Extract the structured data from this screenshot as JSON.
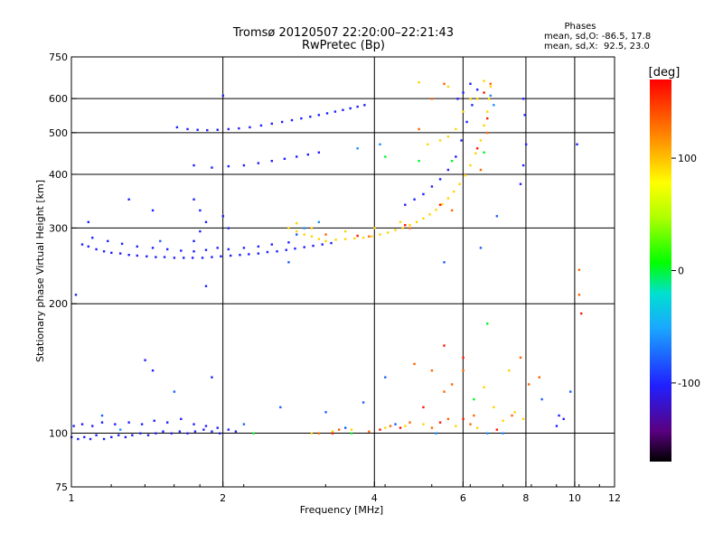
{
  "chart_data": {
    "type": "scatter",
    "title_line1": "Tromsø 20120507 22:20:00–22:21:43",
    "title_line2": "RwPretec (Bp)",
    "phases_box": {
      "title": "Phases",
      "line1": "mean, sd,O: -86.5, 17.8",
      "line2": "mean, sd,X:  92.5, 23.0"
    },
    "xlabel": "Frequency [MHz]",
    "ylabel": "Stationary phase Virtual Height [km]",
    "x_scale": "log",
    "y_scale": "log",
    "xlim": [
      1,
      12
    ],
    "ylim": [
      75,
      750
    ],
    "x_ticks": [
      1,
      2,
      4,
      6,
      8,
      10,
      12
    ],
    "y_ticks": [
      75,
      100,
      200,
      300,
      400,
      500,
      600,
      750
    ],
    "x_grid": [
      2,
      4,
      6,
      8,
      10
    ],
    "y_grid": [
      100,
      200,
      300,
      400,
      500,
      600
    ],
    "grid": true,
    "colorbar": {
      "label": "[deg]",
      "min": -170,
      "max": 170,
      "ticks": [
        100,
        0,
        -100
      ],
      "colormap": "rainbow"
    },
    "series": [
      {
        "color_value": -105,
        "points": [
          [
            1.0,
            98
          ],
          [
            1.03,
            97
          ],
          [
            1.06,
            98
          ],
          [
            1.09,
            97
          ],
          [
            1.12,
            99
          ],
          [
            1.16,
            97
          ],
          [
            1.2,
            98
          ],
          [
            1.24,
            99
          ],
          [
            1.28,
            98
          ],
          [
            1.32,
            99
          ],
          [
            1.37,
            100
          ],
          [
            1.42,
            99
          ],
          [
            1.47,
            100
          ],
          [
            1.52,
            101
          ],
          [
            1.58,
            100
          ],
          [
            1.64,
            101
          ],
          [
            1.7,
            100
          ],
          [
            1.76,
            101
          ],
          [
            1.83,
            102
          ],
          [
            1.9,
            101
          ],
          [
            1.97,
            100
          ],
          [
            2.05,
            102
          ],
          [
            2.12,
            101
          ],
          [
            1.01,
            104
          ],
          [
            1.05,
            105
          ],
          [
            1.1,
            104
          ],
          [
            1.15,
            106
          ],
          [
            1.22,
            105
          ],
          [
            1.3,
            106
          ],
          [
            1.38,
            105
          ],
          [
            1.46,
            107
          ],
          [
            1.55,
            106
          ],
          [
            1.65,
            108
          ],
          [
            1.75,
            105
          ],
          [
            1.85,
            104
          ],
          [
            1.95,
            103
          ],
          [
            1.05,
            275
          ],
          [
            1.08,
            272
          ],
          [
            1.12,
            268
          ],
          [
            1.16,
            265
          ],
          [
            1.2,
            263
          ],
          [
            1.25,
            262
          ],
          [
            1.3,
            260
          ],
          [
            1.35,
            259
          ],
          [
            1.41,
            258
          ],
          [
            1.47,
            257
          ],
          [
            1.53,
            257
          ],
          [
            1.6,
            256
          ],
          [
            1.67,
            256
          ],
          [
            1.74,
            256
          ],
          [
            1.82,
            256
          ],
          [
            1.9,
            257
          ],
          [
            1.98,
            258
          ],
          [
            2.07,
            259
          ],
          [
            2.16,
            260
          ],
          [
            2.25,
            261
          ],
          [
            2.35,
            262
          ],
          [
            2.45,
            264
          ],
          [
            2.56,
            265
          ],
          [
            2.67,
            267
          ],
          [
            2.78,
            269
          ],
          [
            2.9,
            271
          ],
          [
            3.02,
            273
          ],
          [
            3.15,
            275
          ],
          [
            3.28,
            277
          ],
          [
            1.1,
            285
          ],
          [
            1.18,
            280
          ],
          [
            1.26,
            276
          ],
          [
            1.35,
            272
          ],
          [
            1.45,
            270
          ],
          [
            1.55,
            268
          ],
          [
            1.65,
            266
          ],
          [
            1.75,
            265
          ],
          [
            1.85,
            267
          ],
          [
            1.95,
            270
          ],
          [
            2.05,
            268
          ],
          [
            2.2,
            270
          ],
          [
            2.35,
            272
          ],
          [
            2.5,
            275
          ],
          [
            2.7,
            278
          ],
          [
            1.62,
            515
          ],
          [
            1.7,
            510
          ],
          [
            1.78,
            508
          ],
          [
            1.86,
            507
          ],
          [
            1.95,
            508
          ],
          [
            2.05,
            510
          ],
          [
            2.15,
            512
          ],
          [
            2.26,
            515
          ],
          [
            2.38,
            520
          ],
          [
            2.5,
            525
          ],
          [
            2.62,
            530
          ],
          [
            2.74,
            535
          ],
          [
            2.86,
            540
          ],
          [
            2.98,
            545
          ],
          [
            3.1,
            550
          ],
          [
            3.22,
            555
          ],
          [
            3.34,
            560
          ],
          [
            3.46,
            565
          ],
          [
            3.58,
            570
          ],
          [
            3.7,
            575
          ],
          [
            3.82,
            580
          ],
          [
            1.75,
            420
          ],
          [
            1.9,
            415
          ],
          [
            2.05,
            418
          ],
          [
            2.2,
            420
          ],
          [
            2.35,
            425
          ],
          [
            2.5,
            430
          ],
          [
            2.65,
            435
          ],
          [
            2.8,
            440
          ],
          [
            2.95,
            445
          ],
          [
            3.1,
            450
          ],
          [
            1.75,
            350
          ],
          [
            1.8,
            330
          ],
          [
            1.85,
            310
          ],
          [
            1.8,
            295
          ],
          [
            1.75,
            280
          ],
          [
            2.0,
            320
          ],
          [
            2.05,
            300
          ],
          [
            4.6,
            340
          ],
          [
            4.8,
            350
          ],
          [
            5.0,
            360
          ],
          [
            5.2,
            375
          ],
          [
            5.4,
            390
          ],
          [
            5.6,
            410
          ],
          [
            5.8,
            440
          ],
          [
            5.95,
            480
          ],
          [
            6.1,
            530
          ],
          [
            6.25,
            580
          ],
          [
            6.4,
            630
          ],
          [
            5.85,
            600
          ],
          [
            6.0,
            620
          ],
          [
            6.2,
            650
          ],
          [
            7.8,
            380
          ],
          [
            7.9,
            420
          ],
          [
            8.0,
            470
          ],
          [
            7.95,
            550
          ],
          [
            7.9,
            600
          ],
          [
            9.3,
            110
          ],
          [
            9.5,
            108
          ],
          [
            9.2,
            104
          ],
          [
            1.4,
            148
          ],
          [
            1.45,
            140
          ],
          [
            1.9,
            135
          ],
          [
            10.1,
            470
          ],
          [
            1.08,
            310
          ],
          [
            1.3,
            350
          ],
          [
            1.45,
            330
          ],
          [
            1.02,
            210
          ],
          [
            1.85,
            220
          ],
          [
            2.0,
            610
          ]
        ]
      },
      {
        "color_value": -80,
        "points": [
          [
            2.6,
            115
          ],
          [
            3.2,
            112
          ],
          [
            3.8,
            118
          ],
          [
            4.2,
            135
          ],
          [
            1.6,
            125
          ],
          [
            1.15,
            110
          ],
          [
            8.6,
            120
          ],
          [
            9.8,
            125
          ],
          [
            2.2,
            105
          ],
          [
            3.5,
            103
          ],
          [
            4.4,
            105
          ],
          [
            2.7,
            250
          ],
          [
            5.5,
            250
          ],
          [
            6.5,
            270
          ],
          [
            1.5,
            280
          ],
          [
            2.8,
            290
          ],
          [
            7.0,
            320
          ]
        ]
      },
      {
        "color_value": -60,
        "points": [
          [
            3.7,
            460
          ],
          [
            4.1,
            470
          ],
          [
            5.3,
            100
          ],
          [
            6.7,
            100
          ],
          [
            7.2,
            100
          ],
          [
            1.25,
            102
          ],
          [
            2.9,
            300
          ],
          [
            3.1,
            310
          ],
          [
            6.9,
            580
          ],
          [
            6.8,
            610
          ]
        ]
      },
      {
        "color_value": 0,
        "points": [
          [
            3.6,
            100
          ],
          [
            4.9,
            430
          ],
          [
            6.3,
            120
          ],
          [
            2.3,
            100
          ],
          [
            6.7,
            180
          ],
          [
            4.2,
            440
          ],
          [
            6.6,
            450
          ],
          [
            5.7,
            430
          ]
        ]
      },
      {
        "color_value": 90,
        "points": [
          [
            2.7,
            300
          ],
          [
            2.8,
            295
          ],
          [
            2.9,
            290
          ],
          [
            3.0,
            287
          ],
          [
            3.1,
            283
          ],
          [
            3.2,
            280
          ],
          [
            3.35,
            282
          ],
          [
            3.5,
            283
          ],
          [
            3.65,
            284
          ],
          [
            3.8,
            285
          ],
          [
            3.95,
            287
          ],
          [
            4.1,
            290
          ],
          [
            4.25,
            293
          ],
          [
            4.4,
            297
          ],
          [
            4.55,
            300
          ],
          [
            4.7,
            305
          ],
          [
            4.85,
            310
          ],
          [
            5.0,
            316
          ],
          [
            5.15,
            323
          ],
          [
            5.3,
            331
          ],
          [
            5.45,
            341
          ],
          [
            5.6,
            352
          ],
          [
            5.75,
            365
          ],
          [
            5.9,
            380
          ],
          [
            6.05,
            398
          ],
          [
            6.2,
            420
          ],
          [
            6.35,
            448
          ],
          [
            6.5,
            480
          ],
          [
            6.6,
            520
          ],
          [
            6.7,
            560
          ],
          [
            6.75,
            600
          ],
          [
            6.8,
            640
          ],
          [
            5.1,
            470
          ],
          [
            5.4,
            480
          ],
          [
            5.6,
            490
          ],
          [
            5.8,
            510
          ],
          [
            6.0,
            560
          ],
          [
            6.2,
            600
          ],
          [
            3.0,
            100
          ],
          [
            3.3,
            101
          ],
          [
            3.6,
            102
          ],
          [
            4.2,
            103
          ],
          [
            4.6,
            104
          ],
          [
            5.0,
            105
          ],
          [
            5.8,
            104
          ],
          [
            6.4,
            103
          ],
          [
            7.2,
            107
          ],
          [
            7.6,
            112
          ],
          [
            7.9,
            108
          ],
          [
            6.9,
            115
          ],
          [
            6.6,
            128
          ],
          [
            7.4,
            140
          ],
          [
            4.9,
            655
          ],
          [
            5.6,
            640
          ],
          [
            6.4,
            600
          ],
          [
            6.6,
            660
          ],
          [
            2.8,
            308
          ],
          [
            3.0,
            300
          ],
          [
            3.5,
            295
          ],
          [
            4.0,
            300
          ],
          [
            4.5,
            310
          ]
        ]
      },
      {
        "color_value": 130,
        "points": [
          [
            3.1,
            100
          ],
          [
            3.4,
            102
          ],
          [
            3.9,
            101
          ],
          [
            4.3,
            104
          ],
          [
            4.7,
            106
          ],
          [
            5.2,
            103
          ],
          [
            5.6,
            108
          ],
          [
            6.2,
            105
          ],
          [
            5.7,
            130
          ],
          [
            4.8,
            145
          ],
          [
            5.5,
            125
          ],
          [
            6.3,
            110
          ],
          [
            7.5,
            110
          ],
          [
            8.1,
            130
          ],
          [
            10.2,
            240
          ],
          [
            10.2,
            210
          ],
          [
            4.9,
            510
          ],
          [
            5.2,
            600
          ],
          [
            5.5,
            650
          ],
          [
            3.2,
            290
          ],
          [
            3.9,
            287
          ],
          [
            4.7,
            300
          ],
          [
            5.7,
            330
          ],
          [
            6.5,
            410
          ],
          [
            6.7,
            500
          ],
          [
            6.8,
            650
          ],
          [
            5.2,
            140
          ],
          [
            6.0,
            140
          ],
          [
            8.5,
            135
          ],
          [
            7.8,
            150
          ]
        ]
      },
      {
        "color_value": 160,
        "points": [
          [
            3.3,
            100
          ],
          [
            4.1,
            102
          ],
          [
            4.5,
            103
          ],
          [
            5.4,
            106
          ],
          [
            6.0,
            108
          ],
          [
            7.0,
            102
          ],
          [
            10.3,
            190
          ],
          [
            6.0,
            150
          ],
          [
            5.5,
            160
          ],
          [
            3.7,
            288
          ],
          [
            4.6,
            305
          ],
          [
            5.4,
            340
          ],
          [
            6.4,
            460
          ],
          [
            6.7,
            540
          ],
          [
            6.6,
            620
          ],
          [
            5.0,
            115
          ]
        ]
      }
    ]
  }
}
